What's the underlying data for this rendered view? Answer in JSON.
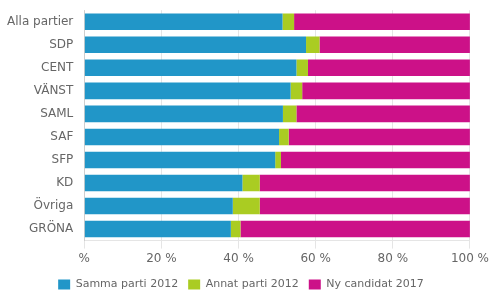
{
  "chart_data": {
    "type": "bar",
    "orientation": "horizontal",
    "stacked": true,
    "categories": [
      "Alla partier",
      "SDP",
      "CENT",
      "VÄNST",
      "SAML",
      "SAF",
      "SFP",
      "KD",
      "Övriga",
      "GRÖNA"
    ],
    "series": [
      {
        "name": "Samma parti 2012",
        "color": "#2196C8",
        "values": [
          51.4,
          57.5,
          55.0,
          53.5,
          51.5,
          50.5,
          49.5,
          41.0,
          38.5,
          38.0
        ]
      },
      {
        "name": "Annat parti 2012",
        "color": "#AACC22",
        "values": [
          3.0,
          3.5,
          3.0,
          3.0,
          3.5,
          2.5,
          1.5,
          4.5,
          7.0,
          2.5
        ]
      },
      {
        "name": "Ny candidat 2017",
        "color": "#CC1188",
        "values": [
          45.6,
          39.0,
          42.0,
          43.5,
          45.0,
          47.0,
          49.0,
          54.5,
          54.5,
          59.5
        ]
      }
    ],
    "xlim": [
      0,
      100
    ],
    "xticks": [
      {
        "value": 0,
        "label": "%"
      },
      {
        "value": 20,
        "label": "20 %"
      },
      {
        "value": 40,
        "label": "40 %"
      },
      {
        "value": 60,
        "label": "60 %"
      },
      {
        "value": 80,
        "label": "80 %"
      },
      {
        "value": 100,
        "label": "100 %"
      }
    ],
    "grid": "x",
    "legend": "bottom"
  }
}
